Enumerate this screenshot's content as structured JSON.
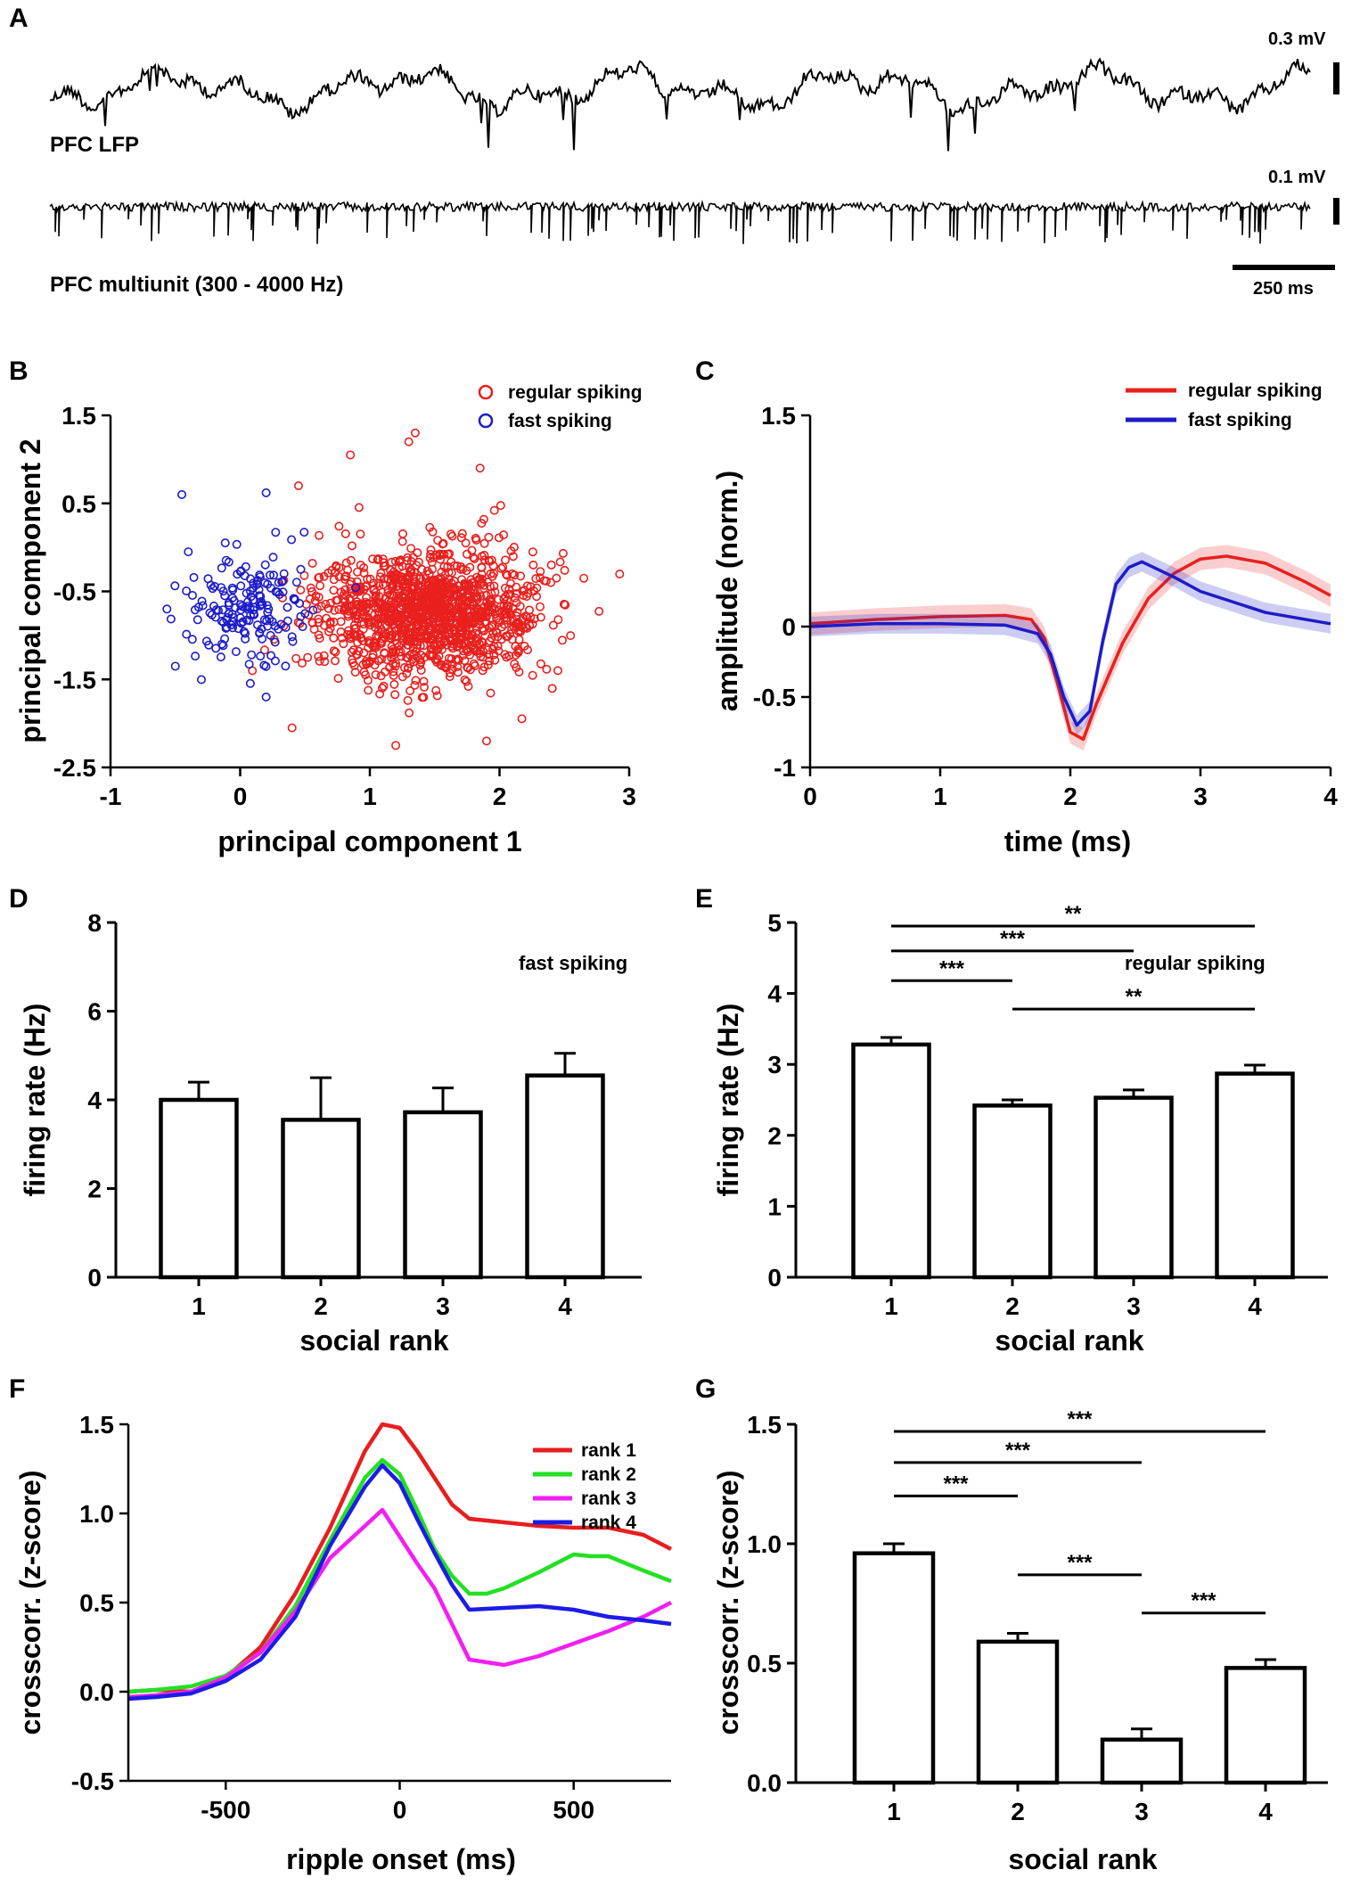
{
  "panels": {
    "A": {
      "letter": "A",
      "lfp_label": "PFC LFP",
      "mua_label": "PFC multiunit (300 - 4000 Hz)",
      "lfp_scale": "0.3 mV",
      "mua_scale": "0.1 mV",
      "time_scale": "250 ms"
    },
    "B": {
      "letter": "B"
    },
    "C": {
      "letter": "C"
    },
    "D": {
      "letter": "D"
    },
    "E": {
      "letter": "E"
    },
    "F": {
      "letter": "F"
    },
    "G": {
      "letter": "G"
    }
  },
  "colors": {
    "regular": "#e8201e",
    "fast": "#1c1cc8",
    "rank1": "#e81e1e",
    "rank2": "#22e022",
    "rank3": "#f21ef2",
    "rank4": "#1c1ce6"
  },
  "chart_data": [
    {
      "id": "B",
      "type": "scatter",
      "xlabel": "principal component 1",
      "ylabel": "principal component 2",
      "xlim": [
        -1,
        3
      ],
      "ylim": [
        -2.5,
        1.5
      ],
      "xticks": [
        "-1",
        "0",
        "1",
        "2",
        "3"
      ],
      "yticks": [
        "1.5",
        "0.5",
        "-0.5",
        "-1.5",
        "-2.5"
      ],
      "series": [
        {
          "name": "regular spiking",
          "center": [
            1.45,
            -0.75
          ],
          "spread": [
            0.42,
            0.36
          ],
          "approx_n": 1800,
          "outliers": [
            [
              1.35,
              1.3
            ],
            [
              1.3,
              1.2
            ],
            [
              0.85,
              1.05
            ],
            [
              1.85,
              0.9
            ],
            [
              0.45,
              0.7
            ],
            [
              2.4,
              -0.2
            ],
            [
              2.65,
              -0.35
            ],
            [
              1.9,
              -2.2
            ],
            [
              1.2,
              -2.25
            ],
            [
              0.4,
              -2.05
            ],
            [
              2.45,
              -1.4
            ]
          ]
        },
        {
          "name": "fast spiking",
          "center": [
            0.05,
            -0.7
          ],
          "spread": [
            0.22,
            0.3
          ],
          "approx_n": 180,
          "outliers": [
            [
              -0.45,
              0.6
            ],
            [
              0.2,
              0.62
            ],
            [
              -0.5,
              -1.35
            ],
            [
              0.2,
              -1.7
            ],
            [
              -0.4,
              -0.05
            ]
          ]
        }
      ]
    },
    {
      "id": "C",
      "type": "line",
      "xlabel": "time (ms)",
      "ylabel": "amplitude (norm.)",
      "xlim": [
        0,
        4
      ],
      "ylim": [
        -1,
        1.5
      ],
      "xticks": [
        "0",
        "1",
        "2",
        "3",
        "4"
      ],
      "yticks": [
        "1.5",
        "0",
        "-0.5",
        "-1"
      ],
      "series": [
        {
          "name": "regular spiking",
          "x": [
            0,
            0.5,
            1.0,
            1.5,
            1.7,
            1.8,
            1.9,
            2.0,
            2.1,
            2.2,
            2.4,
            2.6,
            2.8,
            3.0,
            3.2,
            3.5,
            3.8,
            4.0
          ],
          "y": [
            0.02,
            0.05,
            0.07,
            0.08,
            0.05,
            -0.08,
            -0.4,
            -0.75,
            -0.8,
            -0.55,
            -0.12,
            0.2,
            0.38,
            0.48,
            0.5,
            0.45,
            0.32,
            0.22
          ],
          "band": 0.08
        },
        {
          "name": "fast spiking",
          "x": [
            0,
            0.5,
            1.0,
            1.5,
            1.75,
            1.85,
            1.95,
            2.05,
            2.15,
            2.25,
            2.35,
            2.45,
            2.55,
            2.8,
            3.0,
            3.5,
            4.0
          ],
          "y": [
            0.0,
            0.02,
            0.02,
            0.01,
            -0.05,
            -0.2,
            -0.5,
            -0.7,
            -0.6,
            -0.1,
            0.3,
            0.42,
            0.46,
            0.35,
            0.25,
            0.1,
            0.02
          ],
          "band": 0.07
        }
      ]
    },
    {
      "id": "D",
      "type": "bar",
      "annotation": "fast spiking",
      "xlabel": "social rank",
      "ylabel": "firing rate (Hz)",
      "categories": [
        "1",
        "2",
        "3",
        "4"
      ],
      "values": [
        4.0,
        3.55,
        3.72,
        4.55
      ],
      "errors": [
        0.4,
        0.95,
        0.55,
        0.5
      ],
      "ylim": [
        0,
        8
      ],
      "yticks": [
        "0",
        "2",
        "4",
        "6",
        "8"
      ]
    },
    {
      "id": "E",
      "type": "bar",
      "annotation": "regular spiking",
      "xlabel": "social rank",
      "ylabel": "firing rate (Hz)",
      "categories": [
        "1",
        "2",
        "3",
        "4"
      ],
      "values": [
        3.28,
        2.42,
        2.53,
        2.87
      ],
      "errors": [
        0.1,
        0.08,
        0.11,
        0.12
      ],
      "ylim": [
        0,
        5
      ],
      "yticks": [
        "0",
        "1",
        "2",
        "3",
        "4",
        "5"
      ],
      "significance": [
        {
          "from": "1",
          "to": "4",
          "y": 4.95,
          "label": "**"
        },
        {
          "from": "1",
          "to": "3",
          "y": 4.6,
          "label": "***"
        },
        {
          "from": "1",
          "to": "2",
          "y": 4.18,
          "label": "***"
        },
        {
          "from": "2",
          "to": "4",
          "y": 3.78,
          "label": "**"
        }
      ]
    },
    {
      "id": "F",
      "type": "line",
      "xlabel": "ripple onset (ms)",
      "ylabel": "crosscorr. (z-score)",
      "xlim": [
        -780,
        780
      ],
      "ylim": [
        -0.5,
        1.5
      ],
      "xticks": [
        "-500",
        "0",
        "500"
      ],
      "yticks": [
        "1.5",
        "1.0",
        "0.5",
        "0.0",
        "-0.5"
      ],
      "series": [
        {
          "name": "rank 1",
          "x": [
            -780,
            -700,
            -600,
            -500,
            -400,
            -300,
            -200,
            -100,
            -50,
            0,
            50,
            100,
            150,
            200,
            300,
            400,
            500,
            600,
            700,
            780
          ],
          "y": [
            0.0,
            0.01,
            0.0,
            0.08,
            0.25,
            0.55,
            0.92,
            1.35,
            1.5,
            1.48,
            1.35,
            1.2,
            1.05,
            0.97,
            0.95,
            0.93,
            0.92,
            0.92,
            0.88,
            0.8
          ]
        },
        {
          "name": "rank 2",
          "x": [
            -780,
            -700,
            -600,
            -500,
            -400,
            -300,
            -200,
            -100,
            -50,
            0,
            50,
            100,
            150,
            200,
            250,
            300,
            400,
            500,
            550,
            600,
            700,
            780
          ],
          "y": [
            0.0,
            0.01,
            0.03,
            0.09,
            0.22,
            0.48,
            0.85,
            1.2,
            1.3,
            1.22,
            1.02,
            0.8,
            0.65,
            0.55,
            0.55,
            0.58,
            0.67,
            0.77,
            0.76,
            0.76,
            0.68,
            0.62
          ]
        },
        {
          "name": "rank 3",
          "x": [
            -780,
            -700,
            -600,
            -500,
            -400,
            -300,
            -200,
            -100,
            -50,
            0,
            50,
            100,
            150,
            200,
            300,
            400,
            500,
            600,
            700,
            780
          ],
          "y": [
            -0.03,
            -0.02,
            0.0,
            0.08,
            0.22,
            0.45,
            0.75,
            0.93,
            1.02,
            0.87,
            0.72,
            0.58,
            0.38,
            0.18,
            0.15,
            0.2,
            0.27,
            0.34,
            0.42,
            0.5
          ]
        },
        {
          "name": "rank 4",
          "x": [
            -780,
            -700,
            -600,
            -500,
            -400,
            -300,
            -200,
            -100,
            -50,
            0,
            50,
            100,
            150,
            200,
            300,
            400,
            500,
            600,
            700,
            780
          ],
          "y": [
            -0.04,
            -0.03,
            -0.01,
            0.06,
            0.18,
            0.42,
            0.82,
            1.15,
            1.27,
            1.17,
            0.97,
            0.78,
            0.6,
            0.46,
            0.47,
            0.48,
            0.46,
            0.42,
            0.4,
            0.38
          ]
        }
      ]
    },
    {
      "id": "G",
      "type": "bar",
      "xlabel": "social rank",
      "ylabel": "crosscorr. (z-score)",
      "categories": [
        "1",
        "2",
        "3",
        "4"
      ],
      "values": [
        0.96,
        0.59,
        0.18,
        0.48
      ],
      "errors": [
        0.04,
        0.035,
        0.045,
        0.035
      ],
      "ylim": [
        0,
        1.5
      ],
      "yticks": [
        "0.0",
        "0.5",
        "1.0",
        "1.5"
      ],
      "significance": [
        {
          "from": "1",
          "to": "4",
          "y": 1.47,
          "label": "***"
        },
        {
          "from": "1",
          "to": "3",
          "y": 1.34,
          "label": "***"
        },
        {
          "from": "1",
          "to": "2",
          "y": 1.2,
          "label": "***"
        },
        {
          "from": "2",
          "to": "3",
          "y": 0.87,
          "label": "***"
        },
        {
          "from": "3",
          "to": "4",
          "y": 0.71,
          "label": "***"
        }
      ]
    }
  ]
}
